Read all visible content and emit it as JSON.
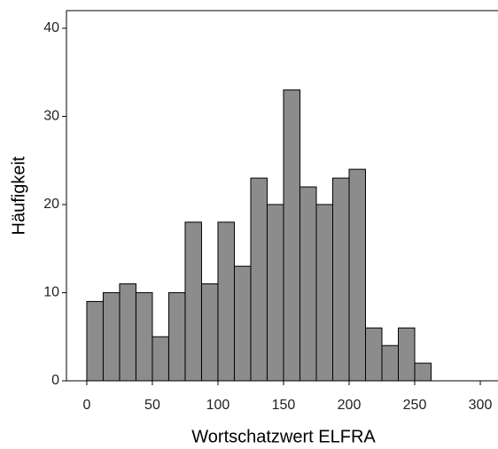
{
  "chart_data": {
    "type": "histogram",
    "xlabel": "Wortschatzwert ELFRA",
    "ylabel": "Häufigkeit",
    "bins": [
      0,
      12.5,
      25,
      37.5,
      50,
      62.5,
      75,
      87.5,
      100,
      112.5,
      125,
      137.5,
      150,
      162.5,
      175,
      187.5,
      200,
      212.5,
      225,
      237.5,
      250,
      262.5
    ],
    "values": [
      9,
      10,
      11,
      10,
      5,
      10,
      18,
      11,
      18,
      13,
      23,
      20,
      33,
      22,
      20,
      23,
      24,
      6,
      4,
      6,
      2
    ],
    "color": "#8c8c8c",
    "xlim": [
      -15.5,
      313.5
    ],
    "xticks": [
      0,
      50,
      100,
      150,
      200,
      250,
      300
    ],
    "ylim": [
      0,
      42
    ],
    "yticks": [
      0,
      10,
      20,
      30,
      40
    ]
  }
}
